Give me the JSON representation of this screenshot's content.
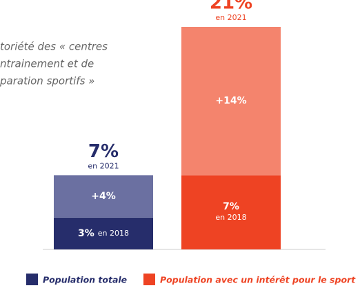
{
  "chart_data": {
    "type": "stacked_bar",
    "title_lines": [
      "toriété des « centres",
      "ntrainement et de",
      "paration sportifs »"
    ],
    "categories": [
      "Population totale",
      "Population avec un intérêt pour le sport"
    ],
    "category_colors": [
      "#262d6b",
      "#ee4323"
    ],
    "series": [
      {
        "name": "en 2018",
        "values": [
          3,
          7
        ],
        "value_labels": [
          "3%",
          "7%"
        ],
        "colors": [
          "#262d6b",
          "#ee4323"
        ]
      },
      {
        "values": [
          4,
          14
        ],
        "value_labels": [
          "+4%",
          "+14%"
        ],
        "colors": [
          "#6b70a1",
          "#f4846d"
        ]
      }
    ],
    "totals": {
      "name": "en 2021",
      "values": [
        7,
        21
      ],
      "value_labels": [
        "7%",
        "21%"
      ]
    },
    "ylim": [
      0,
      21
    ]
  }
}
